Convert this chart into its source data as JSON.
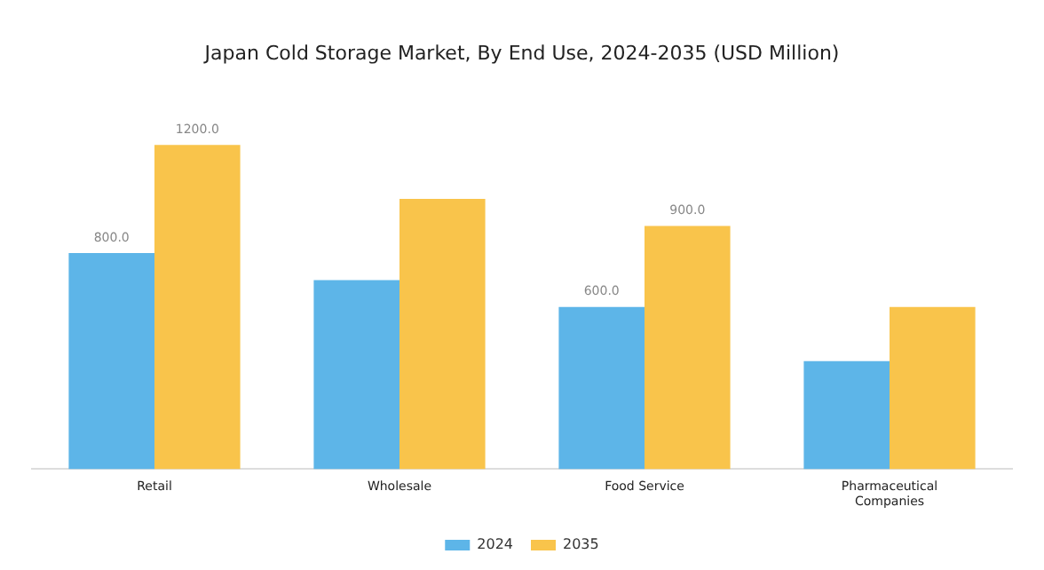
{
  "chart_data": {
    "type": "bar",
    "title": "Japan Cold Storage Market, By End Use, 2024-2035 (USD Million)",
    "categories": [
      "Retail",
      "Wholesale",
      "Food Service",
      "Pharmaceutical Companies"
    ],
    "series": [
      {
        "name": "2024",
        "color": "#5db5e8",
        "values": [
          800,
          700,
          600,
          400
        ],
        "value_labels": [
          "800.0",
          null,
          "600.0",
          null
        ]
      },
      {
        "name": "2035",
        "color": "#f9c44b",
        "values": [
          1200,
          1000,
          900,
          600
        ],
        "value_labels": [
          "1200.0",
          null,
          "900.0",
          null
        ]
      }
    ],
    "tick_labels": "x",
    "grid": false,
    "legend": "bottom"
  }
}
